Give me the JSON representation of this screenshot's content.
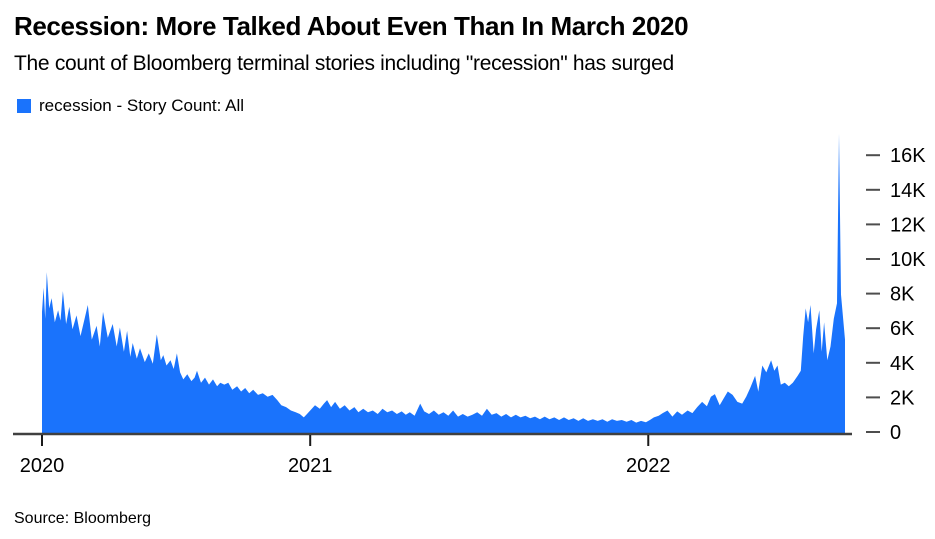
{
  "header": {
    "title": "Recession: More Talked About Even Than In March 2020",
    "subtitle": "The count of Bloomberg terminal stories including \"recession\" has surged"
  },
  "legend": {
    "label": "recession - Story Count: All"
  },
  "footer": {
    "source": "Source: Bloomberg"
  },
  "chart_data": {
    "type": "area",
    "title": "Recession: More Talked About Even Than In March 2020",
    "subtitle": "The count of Bloomberg terminal stories including \"recession\" has surged",
    "series_name": "recession - Story Count: All",
    "fill_color": "#1a73fc",
    "axis_color": "#404040",
    "tick_dash_color": "#4d4d4d",
    "label_color": "#000000",
    "legend_position": "top-left",
    "grid": false,
    "y_axis_side": "right",
    "ylabel": "",
    "xlabel": "",
    "ylim_thousands": [
      0,
      17.8
    ],
    "y_ticks": [
      "0",
      "2K",
      "4K",
      "6K",
      "8K",
      "10K",
      "12K",
      "14K",
      "16K"
    ],
    "y_tick_values": [
      0,
      2000,
      4000,
      6000,
      8000,
      10000,
      12000,
      14000,
      16000
    ],
    "x_ticks": [
      {
        "label": "2020",
        "f": 0.0
      },
      {
        "label": "2021",
        "f": 0.334
      },
      {
        "label": "2022",
        "f": 0.755
      }
    ],
    "values_unit": "thousands of stories",
    "points": [
      [
        0.0,
        7.0
      ],
      [
        0.002,
        8.4
      ],
      [
        0.004,
        6.6
      ],
      [
        0.006,
        9.3
      ],
      [
        0.009,
        7.2
      ],
      [
        0.012,
        7.8
      ],
      [
        0.016,
        6.4
      ],
      [
        0.02,
        7.1
      ],
      [
        0.023,
        6.5
      ],
      [
        0.026,
        8.2
      ],
      [
        0.03,
        6.3
      ],
      [
        0.034,
        7.3
      ],
      [
        0.038,
        6.0
      ],
      [
        0.043,
        6.8
      ],
      [
        0.048,
        5.6
      ],
      [
        0.053,
        6.6
      ],
      [
        0.057,
        7.4
      ],
      [
        0.062,
        5.4
      ],
      [
        0.068,
        6.2
      ],
      [
        0.072,
        5.0
      ],
      [
        0.076,
        7.0
      ],
      [
        0.082,
        5.5
      ],
      [
        0.088,
        6.3
      ],
      [
        0.093,
        5.0
      ],
      [
        0.097,
        6.1
      ],
      [
        0.102,
        4.7
      ],
      [
        0.106,
        5.9
      ],
      [
        0.11,
        4.4
      ],
      [
        0.113,
        5.2
      ],
      [
        0.118,
        4.3
      ],
      [
        0.122,
        4.9
      ],
      [
        0.128,
        4.1
      ],
      [
        0.133,
        4.6
      ],
      [
        0.138,
        4.0
      ],
      [
        0.143,
        5.7
      ],
      [
        0.148,
        4.2
      ],
      [
        0.151,
        4.5
      ],
      [
        0.155,
        3.9
      ],
      [
        0.16,
        4.2
      ],
      [
        0.164,
        3.7
      ],
      [
        0.168,
        4.6
      ],
      [
        0.172,
        3.5
      ],
      [
        0.176,
        3.1
      ],
      [
        0.181,
        3.4
      ],
      [
        0.186,
        3.0
      ],
      [
        0.19,
        3.2
      ],
      [
        0.193,
        3.6
      ],
      [
        0.198,
        2.9
      ],
      [
        0.203,
        3.2
      ],
      [
        0.208,
        2.8
      ],
      [
        0.213,
        3.1
      ],
      [
        0.218,
        2.7
      ],
      [
        0.222,
        2.9
      ],
      [
        0.227,
        2.8
      ],
      [
        0.232,
        2.9
      ],
      [
        0.237,
        2.5
      ],
      [
        0.243,
        2.7
      ],
      [
        0.248,
        2.4
      ],
      [
        0.253,
        2.6
      ],
      [
        0.258,
        2.3
      ],
      [
        0.263,
        2.5
      ],
      [
        0.269,
        2.2
      ],
      [
        0.275,
        2.3
      ],
      [
        0.281,
        2.1
      ],
      [
        0.287,
        2.2
      ],
      [
        0.293,
        1.9
      ],
      [
        0.298,
        1.6
      ],
      [
        0.304,
        1.5
      ],
      [
        0.31,
        1.3
      ],
      [
        0.316,
        1.2
      ],
      [
        0.321,
        1.1
      ],
      [
        0.326,
        0.9
      ],
      [
        0.33,
        1.1
      ],
      [
        0.334,
        1.3
      ],
      [
        0.34,
        1.6
      ],
      [
        0.346,
        1.4
      ],
      [
        0.351,
        1.7
      ],
      [
        0.355,
        1.9
      ],
      [
        0.36,
        1.5
      ],
      [
        0.365,
        1.8
      ],
      [
        0.371,
        1.4
      ],
      [
        0.377,
        1.6
      ],
      [
        0.383,
        1.3
      ],
      [
        0.389,
        1.5
      ],
      [
        0.394,
        1.2
      ],
      [
        0.4,
        1.4
      ],
      [
        0.406,
        1.2
      ],
      [
        0.412,
        1.3
      ],
      [
        0.418,
        1.1
      ],
      [
        0.424,
        1.4
      ],
      [
        0.43,
        1.2
      ],
      [
        0.436,
        1.3
      ],
      [
        0.442,
        1.1
      ],
      [
        0.448,
        1.25
      ],
      [
        0.453,
        1.05
      ],
      [
        0.458,
        1.2
      ],
      [
        0.464,
        1.0
      ],
      [
        0.471,
        1.7
      ],
      [
        0.476,
        1.25
      ],
      [
        0.482,
        1.1
      ],
      [
        0.488,
        1.3
      ],
      [
        0.494,
        1.05
      ],
      [
        0.5,
        1.2
      ],
      [
        0.506,
        1.0
      ],
      [
        0.512,
        1.3
      ],
      [
        0.518,
        0.95
      ],
      [
        0.524,
        1.1
      ],
      [
        0.53,
        0.95
      ],
      [
        0.536,
        1.05
      ],
      [
        0.542,
        1.2
      ],
      [
        0.548,
        1.0
      ],
      [
        0.554,
        1.4
      ],
      [
        0.56,
        1.05
      ],
      [
        0.566,
        1.15
      ],
      [
        0.572,
        0.95
      ],
      [
        0.578,
        1.1
      ],
      [
        0.584,
        0.9
      ],
      [
        0.59,
        1.05
      ],
      [
        0.596,
        0.9
      ],
      [
        0.602,
        1.0
      ],
      [
        0.608,
        0.85
      ],
      [
        0.614,
        0.95
      ],
      [
        0.62,
        0.8
      ],
      [
        0.626,
        0.95
      ],
      [
        0.632,
        0.8
      ],
      [
        0.638,
        0.9
      ],
      [
        0.644,
        0.75
      ],
      [
        0.65,
        0.9
      ],
      [
        0.656,
        0.75
      ],
      [
        0.662,
        0.85
      ],
      [
        0.668,
        0.7
      ],
      [
        0.674,
        0.85
      ],
      [
        0.68,
        0.7
      ],
      [
        0.686,
        0.8
      ],
      [
        0.692,
        0.7
      ],
      [
        0.698,
        0.8
      ],
      [
        0.704,
        0.65
      ],
      [
        0.71,
        0.8
      ],
      [
        0.716,
        0.7
      ],
      [
        0.722,
        0.75
      ],
      [
        0.728,
        0.65
      ],
      [
        0.734,
        0.75
      ],
      [
        0.74,
        0.6
      ],
      [
        0.746,
        0.7
      ],
      [
        0.752,
        0.62
      ],
      [
        0.757,
        0.75
      ],
      [
        0.762,
        0.9
      ],
      [
        0.768,
        1.0
      ],
      [
        0.773,
        1.15
      ],
      [
        0.779,
        1.3
      ],
      [
        0.785,
        0.95
      ],
      [
        0.791,
        1.25
      ],
      [
        0.797,
        1.05
      ],
      [
        0.804,
        1.3
      ],
      [
        0.81,
        1.15
      ],
      [
        0.816,
        1.5
      ],
      [
        0.822,
        1.8
      ],
      [
        0.828,
        1.55
      ],
      [
        0.833,
        2.1
      ],
      [
        0.838,
        2.25
      ],
      [
        0.844,
        1.6
      ],
      [
        0.849,
        2.0
      ],
      [
        0.854,
        2.4
      ],
      [
        0.86,
        2.2
      ],
      [
        0.866,
        1.8
      ],
      [
        0.872,
        1.7
      ],
      [
        0.877,
        2.1
      ],
      [
        0.882,
        2.6
      ],
      [
        0.888,
        3.3
      ],
      [
        0.892,
        2.4
      ],
      [
        0.897,
        3.9
      ],
      [
        0.902,
        3.5
      ],
      [
        0.908,
        4.2
      ],
      [
        0.912,
        3.6
      ],
      [
        0.916,
        3.9
      ],
      [
        0.92,
        2.8
      ],
      [
        0.925,
        2.9
      ],
      [
        0.93,
        2.7
      ],
      [
        0.935,
        2.9
      ],
      [
        0.941,
        3.3
      ],
      [
        0.945,
        3.6
      ],
      [
        0.948,
        5.6
      ],
      [
        0.951,
        7.2
      ],
      [
        0.954,
        6.4
      ],
      [
        0.957,
        7.4
      ],
      [
        0.961,
        4.6
      ],
      [
        0.964,
        6.0
      ],
      [
        0.968,
        7.1
      ],
      [
        0.971,
        4.7
      ],
      [
        0.974,
        6.4
      ],
      [
        0.978,
        4.2
      ],
      [
        0.982,
        5.0
      ],
      [
        0.986,
        6.6
      ],
      [
        0.99,
        7.5
      ],
      [
        0.9925,
        17.3
      ],
      [
        0.995,
        8.0
      ],
      [
        1.0,
        5.4
      ]
    ]
  }
}
